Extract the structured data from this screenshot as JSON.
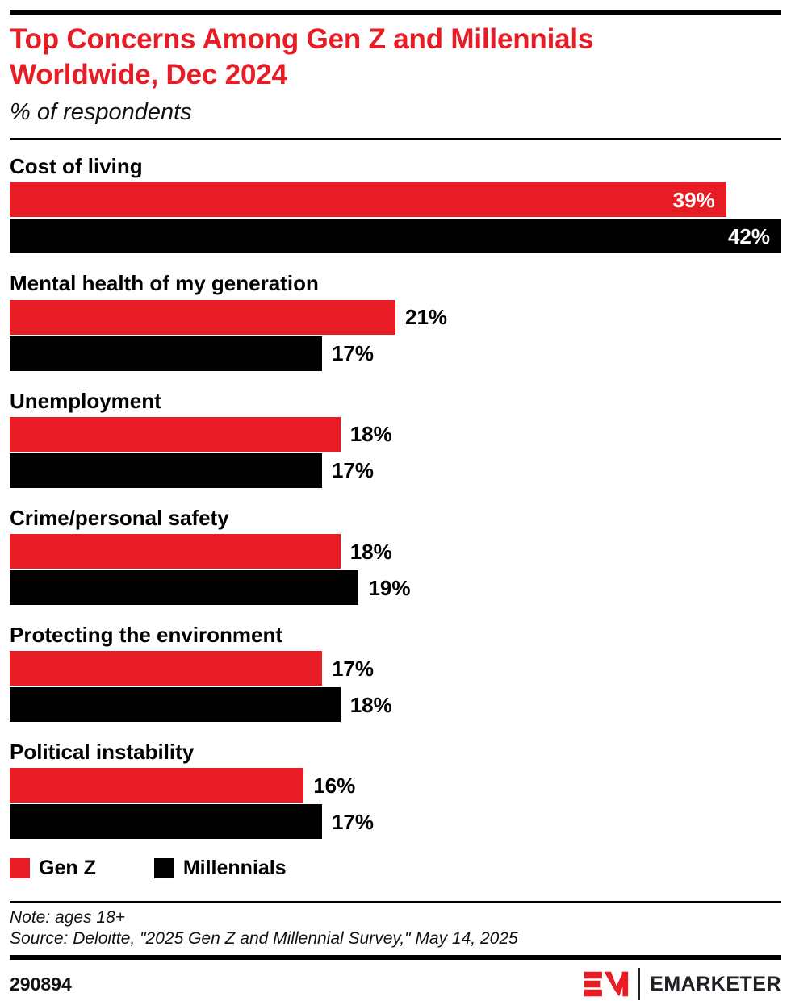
{
  "accent_red": "#e81c24",
  "header": {
    "title_lines": [
      "Top Concerns Among Gen Z and Millennials",
      "Worldwide, Dec 2024"
    ],
    "subtitle": "% of respondents"
  },
  "chart_data": {
    "type": "bar",
    "orientation": "horizontal",
    "title": "Top Concerns Among Gen Z and Millennials Worldwide, Dec 2024",
    "subtitle": "% of respondents",
    "categories": [
      "Cost of living",
      "Mental health of my generation",
      "Unemployment",
      "Crime/personal safety",
      "Protecting the environment",
      "Political instability"
    ],
    "series": [
      {
        "name": "Gen Z",
        "color": "#e81c24",
        "values": [
          39,
          21,
          18,
          18,
          17,
          16
        ]
      },
      {
        "name": "Millennials",
        "color": "#000000",
        "values": [
          42,
          17,
          17,
          19,
          18,
          17
        ]
      }
    ],
    "value_suffix": "%",
    "xlim": [
      0,
      42
    ],
    "grid": false,
    "legend_position": "bottom",
    "value_label_inside_ratio": 0.7
  },
  "legend": {
    "items": [
      {
        "label": "Gen Z",
        "color": "#e81c24"
      },
      {
        "label": "Millennials",
        "color": "#000000"
      }
    ]
  },
  "footer": {
    "note": "Note: ages 18+",
    "source": "Source: Deloitte, \"2025 Gen Z and Millennial Survey,\" May 14, 2025",
    "chart_id": "290894",
    "brand": "EMARKETER"
  }
}
